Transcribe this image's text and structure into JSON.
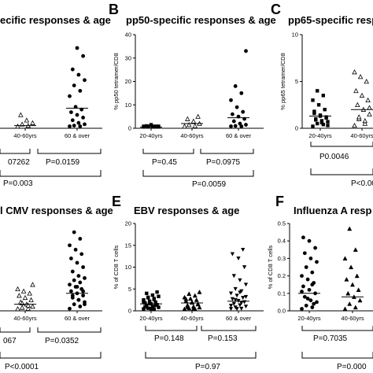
{
  "figure": {
    "panels": [
      {
        "letter": "",
        "title": "ecific responses & age"
      },
      {
        "letter": "B",
        "title": "pp50-specific responses & age"
      },
      {
        "letter": "C",
        "title": "pp65-specific resp"
      },
      {
        "letter": "",
        "title": "l CMV responses & age"
      },
      {
        "letter": "E",
        "title": "EBV responses & age"
      },
      {
        "letter": "F",
        "title": "Influenza A resp"
      }
    ],
    "pvalues": {
      "a_left": "07262",
      "a_right": "P=0.0159",
      "a_bottom": "P=0.003",
      "b_left": "P=0.45",
      "b_right": "P=0.0975",
      "b_bottom": "P=0.0059",
      "c_left": "P0.0046",
      "c_bottom": "P<0.00",
      "d_left": "067",
      "d_right": "P=0.0352",
      "d_bottom": "P<0.0001",
      "e_left": "P=0.148",
      "e_right": "P=0.153",
      "e_bottom": "P=0.97",
      "f_left": "P=0.7035",
      "f_bottom": "P=0.000"
    }
  },
  "chart_data": [
    {
      "type": "scatter",
      "panel": "A (partial)",
      "title": "ecific responses & age",
      "categories": [
        "40-60yrs",
        "60 & over"
      ],
      "ylim": [
        0,
        35
      ],
      "series": [
        {
          "marker": "triangle-open",
          "values": [
            0.5,
            1,
            1.5,
            2,
            3,
            5
          ]
        },
        {
          "marker": "circle",
          "values": [
            0,
            0.5,
            1,
            1.5,
            2,
            3,
            4,
            5,
            6,
            7,
            8,
            12,
            14,
            16,
            18,
            20,
            22,
            27,
            30
          ]
        }
      ],
      "medians": [
        1,
        7.5
      ]
    },
    {
      "type": "scatter",
      "panel": "B",
      "title": "pp50-specific responses & age",
      "ylabel": "% pp50 tetramer/CD8",
      "categories": [
        "20-40yrs",
        "40-60yrs",
        "60 & over"
      ],
      "ylim": [
        0,
        40
      ],
      "yticks": [
        0,
        10,
        20,
        30,
        40
      ],
      "series": [
        {
          "marker": "square",
          "values": [
            0,
            0.2,
            0.4,
            0.6,
            0.8,
            1.0,
            0.3,
            1.5
          ]
        },
        {
          "marker": "triangle-open",
          "values": [
            0.3,
            1,
            1.5,
            2,
            3,
            4,
            5
          ]
        },
        {
          "marker": "circle",
          "values": [
            0.3,
            0.5,
            1,
            1.5,
            2,
            3,
            4,
            5,
            6,
            7,
            9,
            12,
            15,
            18,
            33
          ]
        }
      ],
      "medians": [
        0.5,
        2,
        4.5
      ]
    },
    {
      "type": "scatter",
      "panel": "C (partial)",
      "title": "pp65-specific resp",
      "ylabel": "% pp65 tetramer/CD8",
      "categories": [
        "20-40yrs",
        "40-60yrs"
      ],
      "ylim": [
        0,
        10
      ],
      "yticks": [
        0,
        5,
        10
      ],
      "series": [
        {
          "marker": "square",
          "values": [
            0.2,
            0.4,
            0.5,
            0.7,
            0.8,
            1,
            1.2,
            1.4,
            1.6,
            2,
            2.5,
            3,
            3.5,
            4,
            0.3,
            0.6,
            0.9,
            1.1,
            1.3,
            1.8
          ]
        },
        {
          "marker": "triangle-open",
          "values": [
            0.3,
            0.5,
            1,
            1.5,
            2,
            2.5,
            3,
            3.5,
            4,
            5,
            5.5,
            6,
            0.8,
            1.2,
            2.2
          ]
        }
      ],
      "medians": [
        1.3,
        2
      ]
    },
    {
      "type": "scatter",
      "panel": "D (partial)",
      "title": "l CMV responses & age",
      "categories": [
        "40-60yrs",
        "60 & over"
      ],
      "ylim": [
        0,
        40
      ],
      "series": [
        {
          "marker": "triangle-open",
          "values": [
            0.5,
            1,
            1.5,
            2,
            3,
            4,
            5,
            6,
            7,
            8,
            9,
            10,
            2.5,
            3.5,
            12
          ]
        },
        {
          "marker": "circle",
          "values": [
            1,
            2,
            3,
            4,
            5,
            6,
            7,
            8,
            9,
            10,
            11,
            12,
            13,
            14,
            15,
            16,
            18,
            20,
            22,
            24,
            26,
            28,
            30,
            33,
            36,
            3,
            5,
            7,
            9,
            11
          ]
        }
      ],
      "medians": [
        3,
        8
      ]
    },
    {
      "type": "scatter",
      "panel": "E",
      "title": "EBV responses & age",
      "ylabel": "% of CD8 T cells",
      "categories": [
        "20-40yrs",
        "40-60yrs",
        "60 & over"
      ],
      "ylim": [
        0,
        20
      ],
      "yticks": [
        0,
        5,
        10,
        15,
        20
      ],
      "series": [
        {
          "marker": "square",
          "values": [
            0.2,
            0.4,
            0.6,
            0.8,
            1,
            1.2,
            1.4,
            1.6,
            1.8,
            2,
            2.2,
            2.5,
            2.8,
            3,
            3.3,
            3.6,
            4,
            4.3,
            0.5,
            0.9,
            1.3,
            1.7,
            2.1,
            2.6,
            3.1
          ]
        },
        {
          "marker": "triangle",
          "values": [
            0.2,
            0.4,
            0.6,
            0.8,
            1,
            1.3,
            1.6,
            1.9,
            2.2,
            2.5,
            2.8,
            3.1,
            3.5,
            3.9,
            4.3,
            0.5,
            0.9,
            1.5,
            2,
            2.7
          ]
        },
        {
          "marker": "triangle-down",
          "values": [
            0.2,
            0.5,
            0.8,
            1,
            1.3,
            1.6,
            2,
            2.3,
            2.7,
            3,
            3.5,
            4,
            4.5,
            5,
            6,
            7,
            8,
            10,
            12,
            13,
            14,
            0.4,
            1.2,
            1.8,
            2.5,
            3.2,
            4.2
          ]
        }
      ],
      "medians": [
        1.6,
        1.8,
        2.2
      ]
    },
    {
      "type": "scatter",
      "panel": "F (partial)",
      "title": "Influenza A resp",
      "ylabel": "% of CD8 T cells",
      "categories": [
        "20-40yrs",
        "40-60yrs"
      ],
      "ylim": [
        0,
        0.5
      ],
      "yticks": [
        0.0,
        0.1,
        0.2,
        0.3,
        0.4,
        0.5
      ],
      "series": [
        {
          "marker": "circle",
          "values": [
            0.01,
            0.02,
            0.03,
            0.05,
            0.06,
            0.08,
            0.1,
            0.12,
            0.14,
            0.16,
            0.18,
            0.2,
            0.22,
            0.25,
            0.28,
            0.3,
            0.33,
            0.36,
            0.4,
            0.42,
            0.04,
            0.07,
            0.11,
            0.15
          ]
        },
        {
          "marker": "triangle",
          "values": [
            0.01,
            0.02,
            0.04,
            0.06,
            0.08,
            0.1,
            0.12,
            0.15,
            0.18,
            0.2,
            0.25,
            0.3,
            0.35,
            0.47
          ]
        }
      ],
      "medians": [
        0.1,
        0.08
      ]
    }
  ]
}
